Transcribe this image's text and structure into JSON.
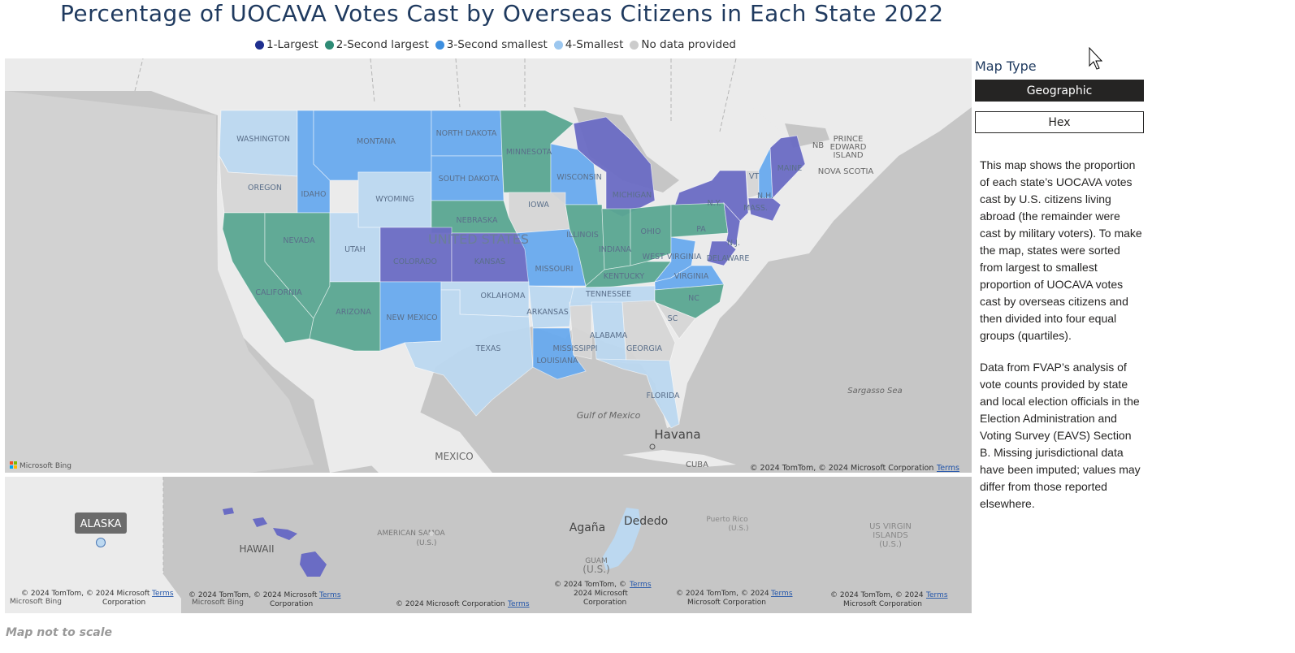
{
  "title": "Percentage of UOCAVA Votes Cast by Overseas Citizens in Each State 2022",
  "legend": [
    {
      "label": "1-Largest",
      "color": "#1f2f8f"
    },
    {
      "label": "2-Second largest",
      "color": "#2e8b75"
    },
    {
      "label": "3-Second smallest",
      "color": "#3d8fe0"
    },
    {
      "label": "4-Smallest",
      "color": "#9cc7ef"
    },
    {
      "label": "No data provided",
      "color": "#cccccc"
    }
  ],
  "colors": {
    "q1": "#6a6cc4",
    "q2": "#5aa791",
    "q3": "#68aaee",
    "q4": "#bcd8f0",
    "nodata": "#d6d6d6",
    "land": "#ebebeb",
    "water": "#c6c6c6"
  },
  "map_labels": {
    "country": "UNITED STATES",
    "mexico": "MEXICO",
    "cuba": "CUBA",
    "havana": "Havana",
    "gulf": "Gulf of Mexico",
    "sargasso": "Sargasso Sea",
    "nb": "NB",
    "pei_1": "PRINCE",
    "pei_2": "EDWARD",
    "pei_3": "ISLAND",
    "nova_scotia": "NOVA SCOTIA"
  },
  "states": {
    "WA": {
      "label": "WASHINGTON",
      "q": "q4"
    },
    "OR": {
      "label": "OREGON",
      "q": "nodata"
    },
    "ID": {
      "label": "IDAHO",
      "q": "q3"
    },
    "MT": {
      "label": "MONTANA",
      "q": "q3"
    },
    "WY": {
      "label": "WYOMING",
      "q": "q4"
    },
    "ND": {
      "label": "NORTH DAKOTA",
      "q": "q3"
    },
    "SD": {
      "label": "SOUTH DAKOTA",
      "q": "q3"
    },
    "NE": {
      "label": "NEBRASKA",
      "q": "q2"
    },
    "MN": {
      "label": "MINNESOTA",
      "q": "q2"
    },
    "IA": {
      "label": "IOWA",
      "q": "nodata"
    },
    "WI": {
      "label": "WISCONSIN",
      "q": "q3"
    },
    "MI": {
      "label": "MICHIGAN",
      "q": "q1"
    },
    "CA": {
      "label": "CALIFORNIA",
      "q": "q2"
    },
    "NV": {
      "label": "NEVADA",
      "q": "q2"
    },
    "UT": {
      "label": "UTAH",
      "q": "q4"
    },
    "CO": {
      "label": "COLORADO",
      "q": "q1"
    },
    "KS": {
      "label": "KANSAS",
      "q": "q1"
    },
    "MO": {
      "label": "MISSOURI",
      "q": "q3"
    },
    "IL": {
      "label": "ILLINOIS",
      "q": "q2"
    },
    "IN": {
      "label": "INDIANA",
      "q": "q2"
    },
    "OH": {
      "label": "OHIO",
      "q": "q2"
    },
    "KY": {
      "label": "KENTUCKY",
      "q": "q2"
    },
    "WV": {
      "label": "WEST VIRGINIA",
      "q": "q3"
    },
    "VA": {
      "label": "VIRGINIA",
      "q": "q3"
    },
    "PA": {
      "label": "PA",
      "q": "q2"
    },
    "NY": {
      "label": "N.Y.",
      "q": "q1"
    },
    "VT": {
      "label": "VT",
      "q": "nodata"
    },
    "NH": {
      "label": "N.H.",
      "q": "q3"
    },
    "ME": {
      "label": "MAINE",
      "q": "q1"
    },
    "MA": {
      "label": "MASS.",
      "q": "q1"
    },
    "NJ": {
      "label": "N.J.",
      "q": "q1"
    },
    "DE": {
      "label": "DELAWARE",
      "q": "q1"
    },
    "AZ": {
      "label": "ARIZONA",
      "q": "q2"
    },
    "NM": {
      "label": "NEW MEXICO",
      "q": "q3"
    },
    "OK": {
      "label": "OKLAHOMA",
      "q": "q4"
    },
    "TX": {
      "label": "TEXAS",
      "q": "q4"
    },
    "AR": {
      "label": "ARKANSAS",
      "q": "q4"
    },
    "LA": {
      "label": "LOUISIANA",
      "q": "q3"
    },
    "MS": {
      "label": "MISSISSIPPI",
      "q": "nodata"
    },
    "AL": {
      "label": "ALABAMA",
      "q": "q4"
    },
    "GA": {
      "label": "GEORGIA",
      "q": "nodata"
    },
    "FL": {
      "label": "FLORIDA",
      "q": "q4"
    },
    "TN": {
      "label": "TENNESSEE",
      "q": "q4"
    },
    "NC": {
      "label": "NC",
      "q": "q2"
    },
    "SC": {
      "label": "SC",
      "q": "nodata"
    }
  },
  "insets": {
    "alaska": {
      "label": "ALASKA"
    },
    "hawaii": {
      "label": "HAWAII",
      "q": "q1"
    },
    "american_samoa": {
      "label_1": "AMERICAN SAMOA",
      "label_2": "(U.S.)"
    },
    "guam": {
      "label_1": "Agaña",
      "label_2": "Dededo",
      "label_3": "GUAM",
      "label_4": "(U.S.)",
      "q": "q4"
    },
    "puerto_rico": {
      "label_1": "Puerto Rico",
      "label_2": "(U.S.)"
    },
    "usvi": {
      "label_1": "US VIRGIN",
      "label_2": "ISLANDS",
      "label_3": "(U.S.)"
    }
  },
  "attribution": {
    "bing": "Microsoft Bing",
    "main": "© 2024 TomTom, © 2024 Microsoft Corporation",
    "terms": "Terms",
    "a1_1": "© 2024 TomTom, © 2024 Microsoft",
    "a1_2": "Corporation",
    "a2": "© 2024 Microsoft Corporation",
    "a3_1": "© 2024 TomTom, ©",
    "a3_2": "2024 Microsoft",
    "a3_3": "Corporation",
    "a4_1": "© 2024 TomTom, © 2024",
    "a4_2": "Microsoft Corporation"
  },
  "panel": {
    "title": "Map Type",
    "btn_geographic": "Geographic",
    "btn_hex": "Hex",
    "desc_1": "This map shows the proportion of each state’s UOCAVA votes cast by U.S. citizens living abroad (the remainder were cast by military voters). To make the map, states were sorted from largest to smallest proportion of UOCAVA votes cast by overseas citizens and then divided into four equal groups (quartiles).",
    "desc_2": "Data from FVAP’s analysis of vote counts provided by state and local election officials in the Election Administration and Voting Survey (EAVS) Section B. Missing jurisdictional data have been imputed; values may differ from those reported elsewhere."
  },
  "footnote": "Map not to scale"
}
